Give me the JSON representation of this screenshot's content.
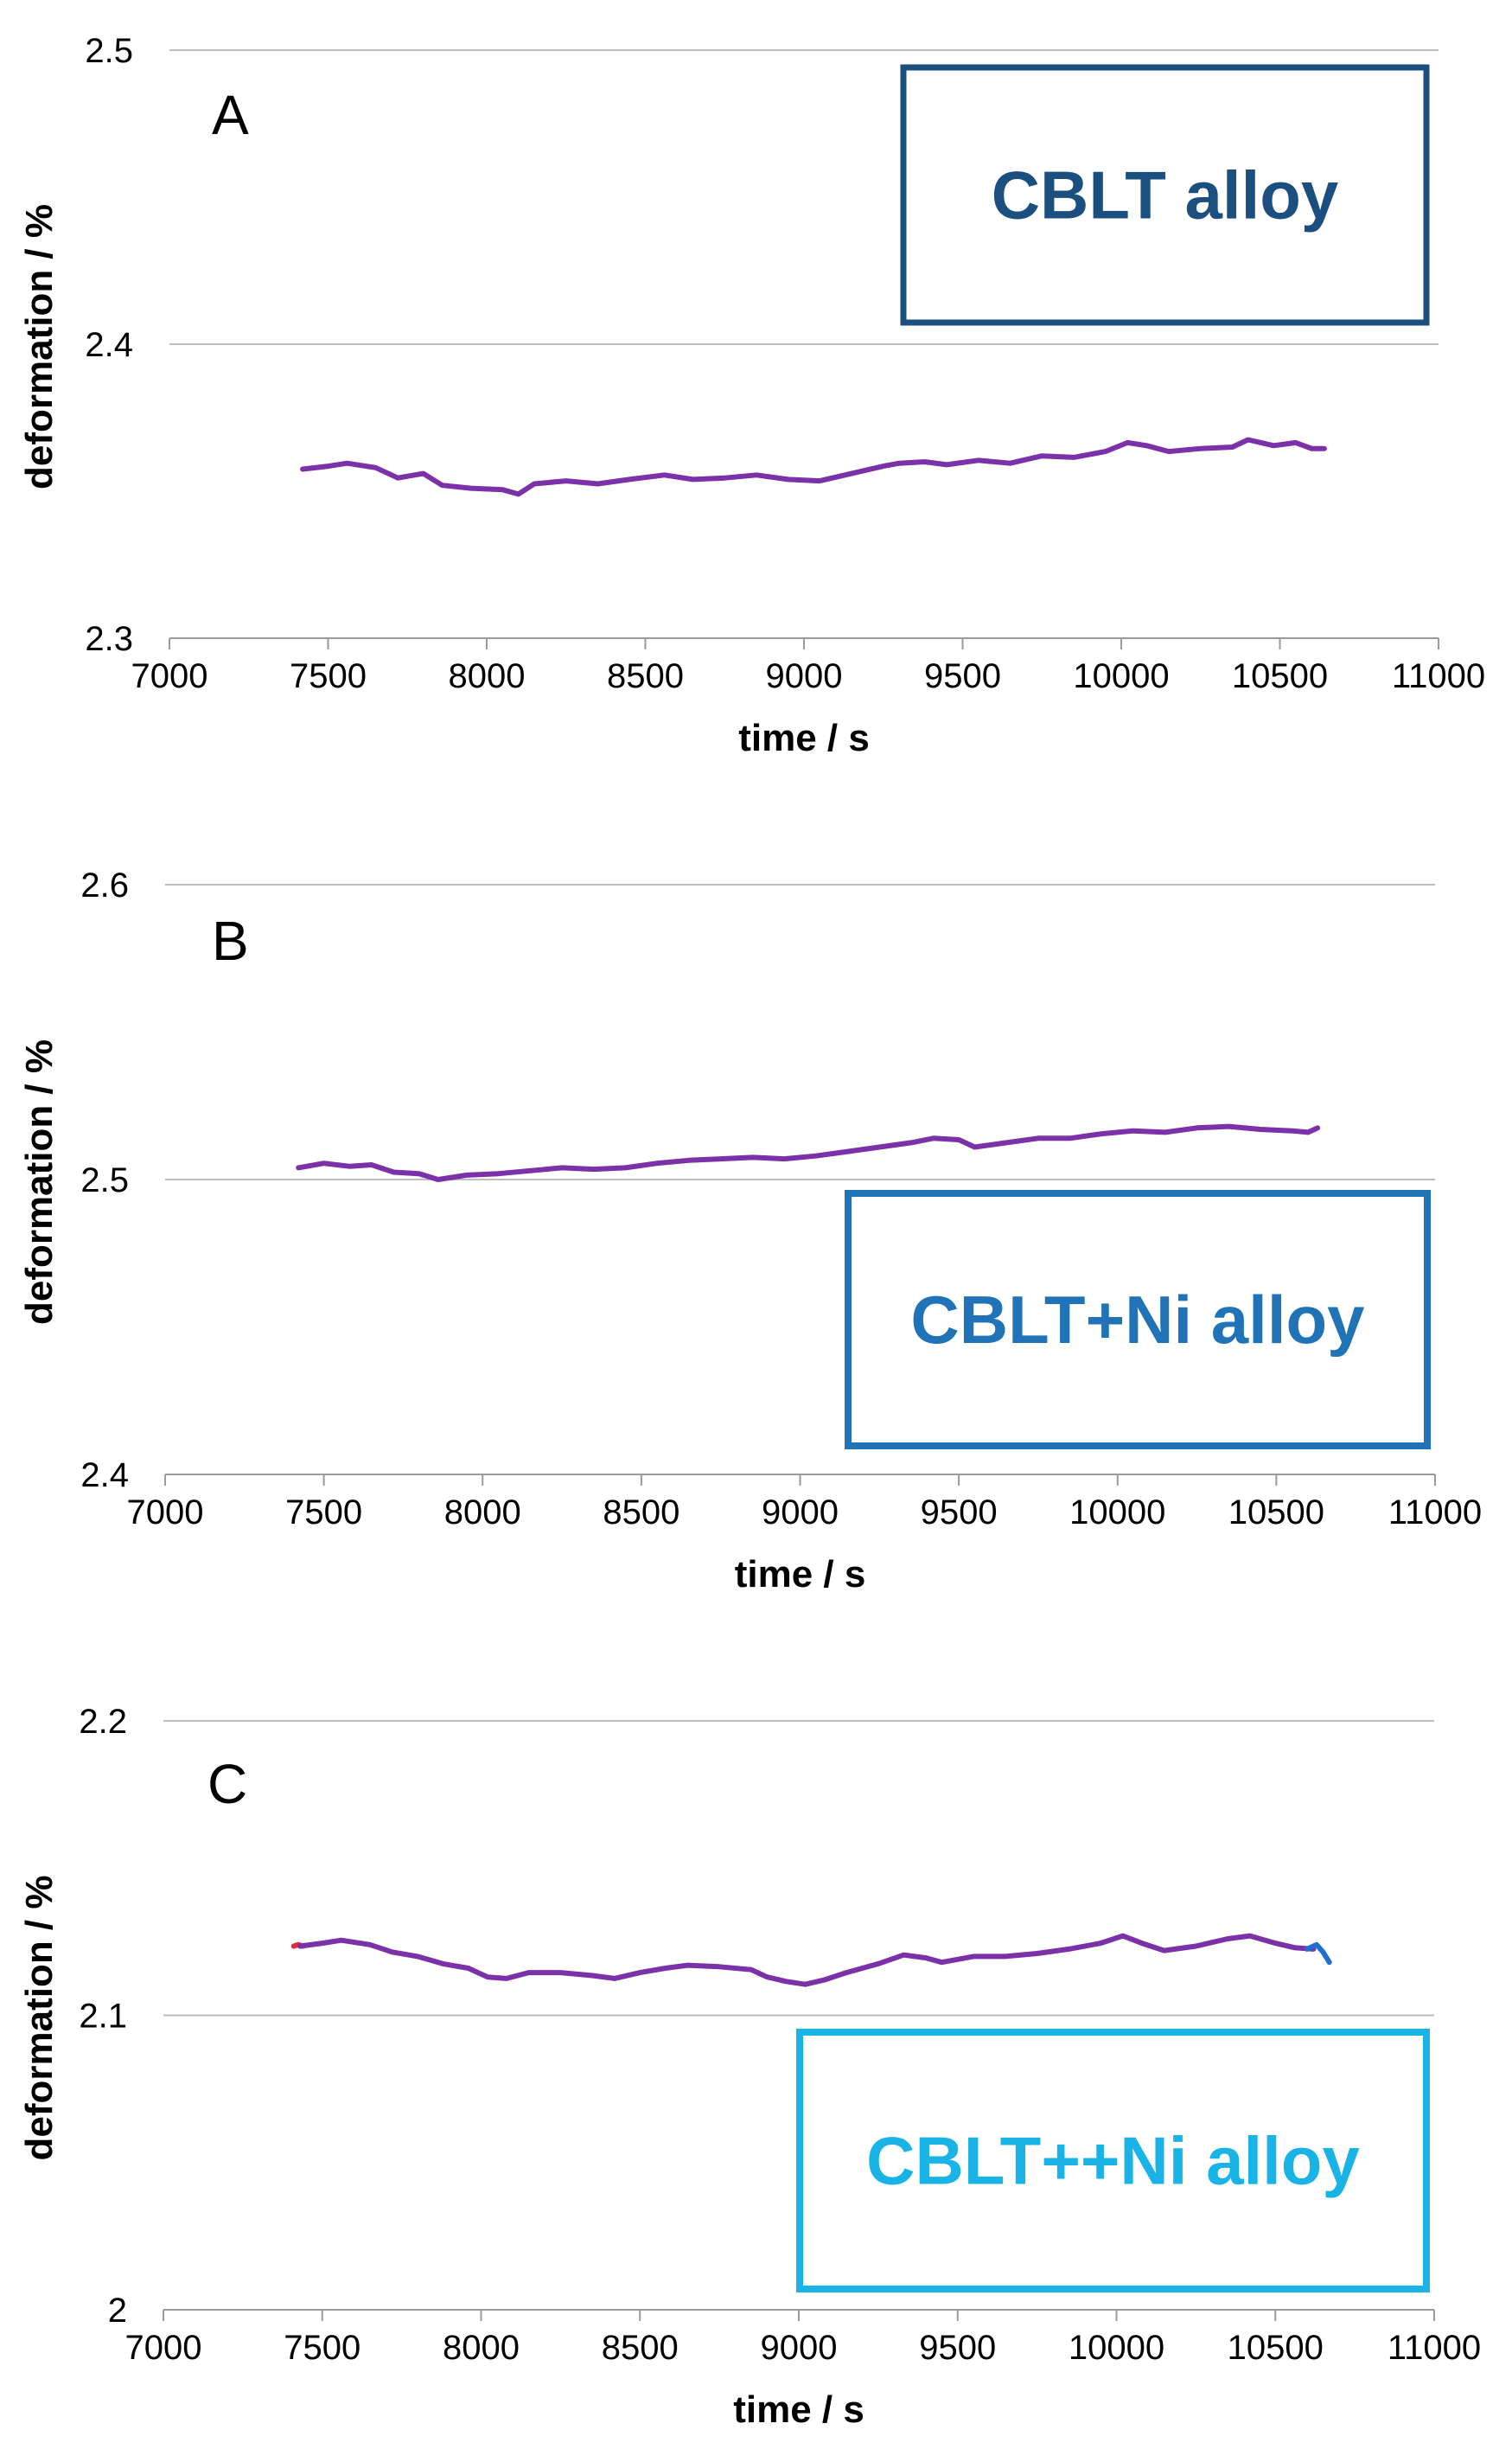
{
  "chart_data": [
    {
      "type": "line",
      "panel_label": "A",
      "annotation": "CBLT alloy",
      "annotation_color": "#1b4f80",
      "xlabel": "time / s",
      "ylabel": "deformation / %",
      "xlim": [
        7000,
        11000
      ],
      "ylim": [
        2.3,
        2.5
      ],
      "x_ticks": [
        "7000",
        "7500",
        "8000",
        "8500",
        "9000",
        "9500",
        "10000",
        "10500",
        "11000"
      ],
      "y_ticks": [
        "2.3",
        "2.4",
        "2.5"
      ],
      "grid": true,
      "series": [
        {
          "color": "#7b32a8",
          "x": [
            7420,
            7500,
            7560,
            7650,
            7720,
            7800,
            7860,
            7950,
            8050,
            8100,
            8150,
            8250,
            8350,
            8450,
            8560,
            8650,
            8750,
            8850,
            8950,
            9050,
            9150,
            9250,
            9300,
            9380,
            9450,
            9550,
            9650,
            9750,
            9850,
            9950,
            10020,
            10080,
            10150,
            10250,
            10350,
            10400,
            10480,
            10550,
            10600,
            10640
          ],
          "y": [
            2.3575,
            2.3585,
            2.3595,
            2.358,
            2.3545,
            2.356,
            2.352,
            2.351,
            2.3505,
            2.349,
            2.3525,
            2.3535,
            2.3525,
            2.354,
            2.3555,
            2.354,
            2.3545,
            2.3555,
            2.354,
            2.3535,
            2.356,
            2.3585,
            2.3595,
            2.36,
            2.359,
            2.3605,
            2.3595,
            2.362,
            2.3615,
            2.3635,
            2.3665,
            2.3655,
            2.3635,
            2.3645,
            2.365,
            2.3675,
            2.3655,
            2.3665,
            2.3645,
            2.3645
          ]
        }
      ]
    },
    {
      "type": "line",
      "panel_label": "B",
      "annotation": "CBLT+Ni alloy",
      "annotation_color": "#1f73b6",
      "xlabel": "time / s",
      "ylabel": "deformation / %",
      "xlim": [
        7000,
        11000
      ],
      "ylim": [
        2.4,
        2.6
      ],
      "x_ticks": [
        "7000",
        "7500",
        "8000",
        "8500",
        "9000",
        "9500",
        "10000",
        "10500",
        "11000"
      ],
      "y_ticks": [
        "2.4",
        "2.5",
        "2.6"
      ],
      "grid": true,
      "series": [
        {
          "color": "#7b32a8",
          "x": [
            7420,
            7500,
            7580,
            7650,
            7720,
            7800,
            7860,
            7950,
            8050,
            8150,
            8250,
            8350,
            8450,
            8550,
            8650,
            8750,
            8850,
            8950,
            9050,
            9150,
            9250,
            9350,
            9420,
            9500,
            9550,
            9650,
            9750,
            9850,
            9950,
            10050,
            10150,
            10250,
            10350,
            10450,
            10550,
            10600,
            10630
          ],
          "y": [
            2.504,
            2.5055,
            2.5045,
            2.505,
            2.5025,
            2.502,
            2.5,
            2.5015,
            2.502,
            2.503,
            2.504,
            2.5035,
            2.504,
            2.5055,
            2.5065,
            2.507,
            2.5075,
            2.507,
            2.508,
            2.5095,
            2.511,
            2.5125,
            2.514,
            2.5135,
            2.511,
            2.5125,
            2.514,
            2.514,
            2.5155,
            2.5165,
            2.516,
            2.5175,
            2.518,
            2.517,
            2.5165,
            2.516,
            2.5175
          ]
        }
      ]
    },
    {
      "type": "line",
      "panel_label": "C",
      "annotation": "CBLT++Ni alloy",
      "annotation_color": "#19b3e6",
      "xlabel": "time / s",
      "ylabel": "deformation / %",
      "xlim": [
        7000,
        11000
      ],
      "ylim": [
        2,
        2.2
      ],
      "x_ticks": [
        "7000",
        "7500",
        "8000",
        "8500",
        "9000",
        "9500",
        "10000",
        "10500",
        "11000"
      ],
      "y_ticks": [
        "2",
        "2.1",
        "2.2"
      ],
      "grid": true,
      "series": [
        {
          "color": "#e8263c",
          "x": [
            7410,
            7425,
            7440
          ],
          "y": [
            2.1235,
            2.124,
            2.1235
          ]
        },
        {
          "color": "#7b32a8",
          "x": [
            7430,
            7500,
            7560,
            7650,
            7720,
            7800,
            7880,
            7960,
            8020,
            8080,
            8150,
            8250,
            8350,
            8420,
            8500,
            8580,
            8650,
            8750,
            8850,
            8900,
            8960,
            9020,
            9080,
            9150,
            9250,
            9330,
            9400,
            9450,
            9550,
            9650,
            9750,
            9850,
            9950,
            10020,
            10080,
            10150,
            10250,
            10350,
            10420,
            10500,
            10560,
            10620
          ],
          "y": [
            2.1235,
            2.1245,
            2.1255,
            2.124,
            2.1215,
            2.12,
            2.1175,
            2.116,
            2.113,
            2.1125,
            2.1145,
            2.1145,
            2.1135,
            2.1125,
            2.1145,
            2.116,
            2.117,
            2.1165,
            2.1155,
            2.113,
            2.1115,
            2.1105,
            2.112,
            2.1145,
            2.1175,
            2.1205,
            2.1195,
            2.118,
            2.12,
            2.12,
            2.121,
            2.1225,
            2.1245,
            2.127,
            2.1245,
            2.122,
            2.1235,
            2.126,
            2.127,
            2.1245,
            2.123,
            2.1225
          ]
        },
        {
          "color": "#1f6fd1",
          "x": [
            10600,
            10630,
            10650,
            10670
          ],
          "y": [
            2.1225,
            2.124,
            2.1215,
            2.118
          ]
        }
      ]
    }
  ]
}
